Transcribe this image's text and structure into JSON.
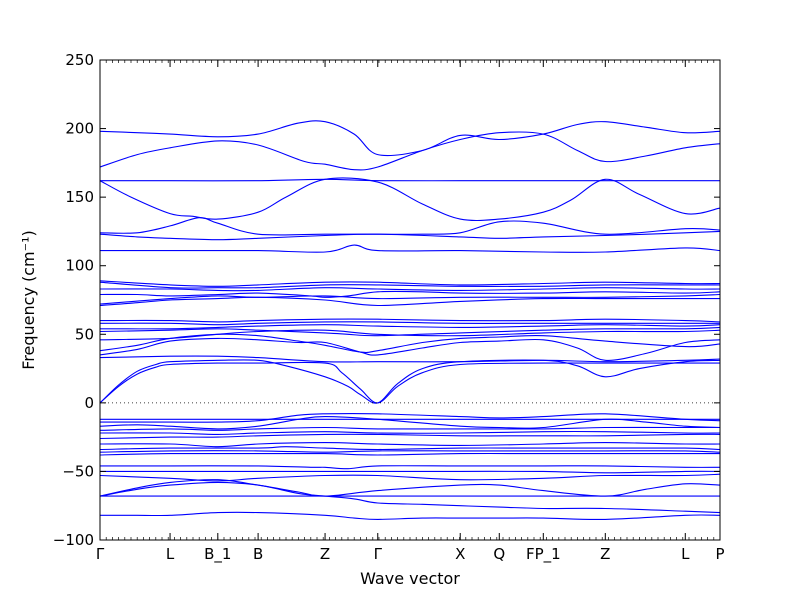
{
  "chart_data": {
    "type": "line",
    "title": "",
    "xlabel": "Wave vector",
    "ylabel": "Frequency (cm⁻¹)",
    "ylim": [
      -100,
      250
    ],
    "yticks": [
      -100,
      -50,
      0,
      50,
      100,
      150,
      200,
      250
    ],
    "zero_line": true,
    "line_color": "#0000ff",
    "xticks": [
      {
        "label": "Γ",
        "x": 0.0
      },
      {
        "label": "L",
        "x": 0.113
      },
      {
        "label": "B_1",
        "x": 0.19
      },
      {
        "label": "B",
        "x": 0.255
      },
      {
        "label": "Z",
        "x": 0.363
      },
      {
        "label": "Γ",
        "x": 0.448
      },
      {
        "label": "X",
        "x": 0.581
      },
      {
        "label": "Q",
        "x": 0.644
      },
      {
        "label": "FP_1",
        "x": 0.715
      },
      {
        "label": "Z",
        "x": 0.815
      },
      {
        "label": "L",
        "x": 0.944
      },
      {
        "label": "P",
        "x": 1.0
      }
    ],
    "series": [
      {
        "x": [
          0,
          0.03,
          0.06,
          0.113,
          0.19,
          0.255,
          0.363,
          0.41,
          0.448,
          0.52,
          0.581,
          0.644,
          0.715,
          0.815,
          0.944,
          1.0
        ],
        "values": [
          -82,
          -82,
          -82,
          -82,
          -80,
          -80,
          -82,
          -84,
          -85,
          -84,
          -84,
          -84,
          -84,
          -85,
          -82,
          -82
        ]
      },
      {
        "x": [
          0,
          0.06,
          0.113,
          0.19,
          0.255,
          0.32,
          0.363,
          0.41,
          0.448,
          0.52,
          0.581,
          0.644,
          0.715,
          0.815,
          0.944,
          1.0
        ],
        "values": [
          -68,
          -63,
          -60,
          -58,
          -60,
          -66,
          -68,
          -70,
          -73,
          -74,
          -75,
          -76,
          -77,
          -77,
          -79,
          -80
        ]
      },
      {
        "x": [
          0,
          0.113,
          0.255,
          0.363,
          0.448,
          0.581,
          0.715,
          0.815,
          0.944,
          1.0
        ],
        "values": [
          -68,
          -68,
          -68,
          -68,
          -68,
          -68,
          -68,
          -68,
          -68,
          -68
        ]
      },
      {
        "x": [
          0,
          0.06,
          0.113,
          0.19,
          0.255,
          0.32,
          0.363,
          0.448,
          0.581,
          0.644,
          0.715,
          0.815,
          0.88,
          0.944,
          1.0
        ],
        "values": [
          -68,
          -62,
          -58,
          -56,
          -60,
          -65,
          -68,
          -64,
          -60,
          -60,
          -64,
          -68,
          -63,
          -59,
          -60
        ]
      },
      {
        "x": [
          0,
          0.113,
          0.19,
          0.255,
          0.363,
          0.448,
          0.581,
          0.715,
          0.815,
          0.944,
          1.0
        ],
        "values": [
          -53,
          -55,
          -57,
          -55,
          -53,
          -53,
          -56,
          -55,
          -53,
          -53,
          -52
        ]
      },
      {
        "x": [
          0,
          0.113,
          0.255,
          0.363,
          0.448,
          0.581,
          0.715,
          0.815,
          0.944,
          1.0
        ],
        "values": [
          -50,
          -50,
          -50,
          -50,
          -50,
          -50,
          -50,
          -51,
          -50,
          -50
        ]
      },
      {
        "x": [
          0,
          0.113,
          0.255,
          0.34,
          0.363,
          0.4,
          0.448,
          0.581,
          0.715,
          0.815,
          0.944,
          1.0
        ],
        "values": [
          -46,
          -46,
          -46,
          -47,
          -47,
          -48,
          -46,
          -46,
          -46,
          -46,
          -47,
          -47
        ]
      },
      {
        "x": [
          0,
          0.113,
          0.255,
          0.363,
          0.448,
          0.581,
          0.715,
          0.815,
          0.944,
          1.0
        ],
        "values": [
          -38,
          -37,
          -37,
          -37,
          -38,
          -37,
          -37,
          -37,
          -37,
          -37
        ]
      },
      {
        "x": [
          0,
          0.113,
          0.255,
          0.363,
          0.448,
          0.581,
          0.715,
          0.815,
          0.944,
          1.0
        ],
        "values": [
          -36,
          -35,
          -35,
          -36,
          -35,
          -35,
          -35,
          -35,
          -35,
          -36
        ]
      },
      {
        "x": [
          0,
          0.113,
          0.255,
          0.3,
          0.363,
          0.448,
          0.581,
          0.715,
          0.815,
          0.944,
          1.0
        ],
        "values": [
          -34,
          -33,
          -33,
          -32,
          -33,
          -34,
          -33,
          -33,
          -33,
          -33,
          -34
        ]
      },
      {
        "x": [
          0,
          0.113,
          0.19,
          0.255,
          0.363,
          0.448,
          0.581,
          0.715,
          0.815,
          0.944,
          1.0
        ],
        "values": [
          -30,
          -30,
          -32,
          -30,
          -29,
          -30,
          -31,
          -30,
          -29,
          -30,
          -30
        ]
      },
      {
        "x": [
          0,
          0.113,
          0.19,
          0.255,
          0.363,
          0.448,
          0.581,
          0.715,
          0.815,
          0.944,
          1.0
        ],
        "values": [
          -26,
          -25,
          -25,
          -24,
          -23,
          -23,
          -24,
          -24,
          -24,
          -23,
          -23
        ]
      },
      {
        "x": [
          0,
          0.113,
          0.19,
          0.255,
          0.363,
          0.448,
          0.581,
          0.715,
          0.815,
          0.944,
          1.0
        ],
        "values": [
          -22,
          -22,
          -23,
          -22,
          -21,
          -22,
          -22,
          -21,
          -21,
          -22,
          -22
        ]
      },
      {
        "x": [
          0,
          0.113,
          0.19,
          0.255,
          0.363,
          0.448,
          0.581,
          0.715,
          0.815,
          0.944,
          1.0
        ],
        "values": [
          -20,
          -19,
          -20,
          -19,
          -18,
          -19,
          -19,
          -19,
          -18,
          -18,
          -18
        ]
      },
      {
        "x": [
          0,
          0.06,
          0.113,
          0.19,
          0.255,
          0.32,
          0.363,
          0.448,
          0.581,
          0.644,
          0.715,
          0.815,
          0.88,
          0.944,
          1.0
        ],
        "values": [
          -17,
          -16,
          -17,
          -19,
          -17,
          -12,
          -10,
          -12,
          -17,
          -18,
          -18,
          -12,
          -14,
          -17,
          -18
        ]
      },
      {
        "x": [
          0,
          0.113,
          0.19,
          0.255,
          0.32,
          0.363,
          0.448,
          0.581,
          0.644,
          0.715,
          0.815,
          0.944,
          1.0
        ],
        "values": [
          -14,
          -14,
          -14,
          -13,
          -9,
          -8,
          -8,
          -10,
          -11,
          -10,
          -8,
          -12,
          -13
        ]
      },
      {
        "x": [
          0,
          0.113,
          0.255,
          0.363,
          0.448,
          0.581,
          0.715,
          0.815,
          0.944,
          1.0
        ],
        "values": [
          -12,
          -12,
          -12,
          -12,
          -12,
          -12,
          -12,
          -12,
          -12,
          -12
        ]
      },
      {
        "x": [
          0,
          0.03,
          0.06,
          0.09,
          0.113,
          0.19,
          0.255,
          0.363,
          0.39,
          0.42,
          0.448,
          0.48,
          0.52,
          0.581,
          0.715,
          0.815,
          0.944,
          1.0
        ],
        "values": [
          0,
          12,
          21,
          26,
          28,
          29,
          29,
          29,
          22,
          10,
          0,
          12,
          22,
          28,
          29,
          29,
          29,
          29
        ]
      },
      {
        "x": [
          0,
          0.03,
          0.06,
          0.09,
          0.113,
          0.19,
          0.255,
          0.3,
          0.363,
          0.4,
          0.42,
          0.448,
          0.48,
          0.52,
          0.581,
          0.715,
          0.77,
          0.815,
          0.87,
          0.944,
          1.0
        ],
        "values": [
          0,
          13,
          23,
          28,
          30,
          31,
          31,
          27,
          19,
          12,
          6,
          0,
          14,
          25,
          30,
          31,
          27,
          19,
          25,
          30,
          31
        ]
      },
      {
        "x": [
          0,
          0.113,
          0.19,
          0.255,
          0.363,
          0.448,
          0.581,
          0.715,
          0.815,
          0.944,
          1.0
        ],
        "values": [
          33,
          34,
          34,
          33,
          30,
          30,
          30,
          31,
          30,
          31,
          32
        ]
      },
      {
        "x": [
          0,
          0.06,
          0.113,
          0.19,
          0.255,
          0.32,
          0.363,
          0.42,
          0.448,
          0.52,
          0.581,
          0.644,
          0.715,
          0.77,
          0.815,
          0.88,
          0.944,
          1.0
        ],
        "values": [
          35,
          39,
          45,
          47,
          46,
          44,
          44,
          37,
          35,
          40,
          44,
          45,
          46,
          40,
          31,
          36,
          44,
          46
        ]
      },
      {
        "x": [
          0,
          0.06,
          0.113,
          0.19,
          0.255,
          0.32,
          0.363,
          0.42,
          0.448,
          0.52,
          0.581,
          0.644,
          0.715,
          0.815,
          0.944,
          1.0
        ],
        "values": [
          38,
          42,
          47,
          50,
          49,
          45,
          42,
          37,
          38,
          44,
          47,
          48,
          49,
          45,
          41,
          43
        ]
      },
      {
        "x": [
          0,
          0.113,
          0.19,
          0.255,
          0.363,
          0.448,
          0.581,
          0.715,
          0.815,
          0.944,
          1.0
        ],
        "values": [
          46,
          47,
          50,
          52,
          53,
          50,
          49,
          51,
          52,
          52,
          53
        ]
      },
      {
        "x": [
          0,
          0.113,
          0.19,
          0.255,
          0.363,
          0.4,
          0.448,
          0.581,
          0.715,
          0.815,
          0.944,
          1.0
        ],
        "values": [
          52,
          53,
          54,
          53,
          51,
          50,
          49,
          51,
          53,
          54,
          54,
          55
        ]
      },
      {
        "x": [
          0,
          0.113,
          0.19,
          0.255,
          0.363,
          0.448,
          0.581,
          0.715,
          0.815,
          0.944,
          1.0
        ],
        "values": [
          54,
          54,
          55,
          56,
          57,
          56,
          55,
          56,
          57,
          56,
          57
        ]
      },
      {
        "x": [
          0,
          0.113,
          0.19,
          0.255,
          0.363,
          0.448,
          0.581,
          0.715,
          0.815,
          0.944,
          1.0
        ],
        "values": [
          58,
          58,
          57,
          58,
          59,
          59,
          58,
          58,
          58,
          58,
          58
        ]
      },
      {
        "x": [
          0,
          0.113,
          0.19,
          0.255,
          0.363,
          0.448,
          0.581,
          0.715,
          0.815,
          0.944,
          1.0
        ],
        "values": [
          60,
          60,
          59,
          60,
          61,
          61,
          60,
          60,
          61,
          60,
          59
        ]
      },
      {
        "x": [
          0,
          0.06,
          0.113,
          0.19,
          0.255,
          0.363,
          0.448,
          0.581,
          0.715,
          0.815,
          0.944,
          1.0
        ],
        "values": [
          71,
          73,
          75,
          76,
          77,
          75,
          71,
          74,
          76,
          76,
          76,
          76
        ]
      },
      {
        "x": [
          0,
          0.113,
          0.19,
          0.255,
          0.363,
          0.448,
          0.581,
          0.715,
          0.815,
          0.944,
          1.0
        ],
        "values": [
          72,
          76,
          78,
          77,
          78,
          76,
          77,
          77,
          77,
          78,
          79
        ]
      },
      {
        "x": [
          0,
          0.06,
          0.113,
          0.19,
          0.255,
          0.34,
          0.363,
          0.4,
          0.448,
          0.52,
          0.581,
          0.715,
          0.815,
          0.944,
          1.0
        ],
        "values": [
          79,
          79,
          78,
          79,
          80,
          78,
          77,
          78,
          81,
          81,
          80,
          80,
          81,
          80,
          81
        ]
      },
      {
        "x": [
          0,
          0.113,
          0.19,
          0.255,
          0.363,
          0.448,
          0.581,
          0.715,
          0.815,
          0.944,
          1.0
        ],
        "values": [
          83,
          83,
          82,
          82,
          84,
          83,
          82,
          83,
          84,
          83,
          83
        ]
      },
      {
        "x": [
          0,
          0.113,
          0.19,
          0.255,
          0.363,
          0.448,
          0.581,
          0.715,
          0.815,
          0.944,
          1.0
        ],
        "values": [
          88,
          84,
          84,
          84,
          86,
          86,
          85,
          85,
          86,
          86,
          86
        ]
      },
      {
        "x": [
          0,
          0.113,
          0.19,
          0.255,
          0.363,
          0.448,
          0.581,
          0.715,
          0.815,
          0.944,
          1.0
        ],
        "values": [
          89,
          86,
          85,
          86,
          88,
          88,
          86,
          87,
          88,
          87,
          87
        ]
      },
      {
        "x": [
          0,
          0.113,
          0.255,
          0.363,
          0.41,
          0.448,
          0.581,
          0.715,
          0.815,
          0.944,
          1.0
        ],
        "values": [
          111,
          111,
          111,
          110,
          115,
          111,
          111,
          110,
          110,
          113,
          111
        ]
      },
      {
        "x": [
          0,
          0.06,
          0.113,
          0.19,
          0.255,
          0.363,
          0.448,
          0.581,
          0.644,
          0.715,
          0.815,
          0.944,
          1.0
        ],
        "values": [
          123,
          121,
          120,
          119,
          120,
          122,
          123,
          121,
          120,
          121,
          122,
          124,
          125
        ]
      },
      {
        "x": [
          0,
          0.06,
          0.113,
          0.16,
          0.19,
          0.255,
          0.363,
          0.448,
          0.52,
          0.581,
          0.644,
          0.715,
          0.815,
          0.944,
          1.0
        ],
        "values": [
          124,
          124,
          129,
          135,
          131,
          123,
          123,
          123,
          123,
          124,
          132,
          131,
          123,
          127,
          126
        ]
      },
      {
        "x": [
          0,
          0.05,
          0.113,
          0.15,
          0.19,
          0.255,
          0.3,
          0.363,
          0.448,
          0.52,
          0.581,
          0.644,
          0.715,
          0.76,
          0.815,
          0.87,
          0.944,
          1.0
        ],
        "values": [
          162,
          150,
          138,
          136,
          134,
          139,
          150,
          163,
          161,
          145,
          134,
          134,
          139,
          148,
          163,
          152,
          138,
          142
        ]
      },
      {
        "x": [
          0,
          0.113,
          0.255,
          0.363,
          0.448,
          0.581,
          0.715,
          0.815,
          0.944,
          1.0
        ],
        "values": [
          162,
          162,
          162,
          163,
          162,
          162,
          162,
          162,
          162,
          162
        ]
      },
      {
        "x": [
          0,
          0.06,
          0.113,
          0.19,
          0.255,
          0.33,
          0.363,
          0.41,
          0.448,
          0.52,
          0.581,
          0.644,
          0.715,
          0.77,
          0.815,
          0.88,
          0.944,
          1.0
        ],
        "values": [
          172,
          181,
          186,
          191,
          188,
          176,
          174,
          170,
          172,
          184,
          192,
          197,
          196,
          184,
          176,
          180,
          186,
          189
        ]
      },
      {
        "x": [
          0,
          0.06,
          0.113,
          0.19,
          0.255,
          0.32,
          0.363,
          0.41,
          0.448,
          0.52,
          0.581,
          0.644,
          0.715,
          0.77,
          0.815,
          0.88,
          0.944,
          1.0
        ],
        "values": [
          198,
          197,
          196,
          194,
          196,
          204,
          205,
          196,
          181,
          184,
          195,
          192,
          196,
          203,
          205,
          201,
          197,
          198
        ]
      }
    ]
  }
}
